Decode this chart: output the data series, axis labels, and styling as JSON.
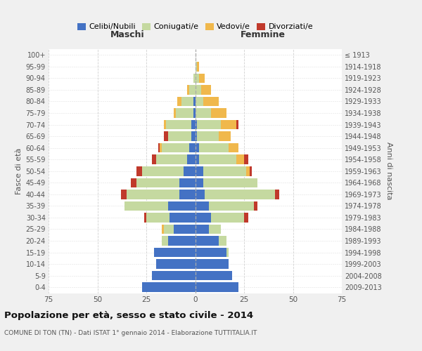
{
  "age_groups": [
    "0-4",
    "5-9",
    "10-14",
    "15-19",
    "20-24",
    "25-29",
    "30-34",
    "35-39",
    "40-44",
    "45-49",
    "50-54",
    "55-59",
    "60-64",
    "65-69",
    "70-74",
    "75-79",
    "80-84",
    "85-89",
    "90-94",
    "95-99",
    "100+"
  ],
  "birth_years": [
    "2009-2013",
    "2004-2008",
    "1999-2003",
    "1994-1998",
    "1989-1993",
    "1984-1988",
    "1979-1983",
    "1974-1978",
    "1969-1973",
    "1964-1968",
    "1959-1963",
    "1954-1958",
    "1949-1953",
    "1944-1948",
    "1939-1943",
    "1934-1938",
    "1929-1933",
    "1924-1928",
    "1919-1923",
    "1914-1918",
    "≤ 1913"
  ],
  "male": {
    "celibi": [
      27,
      22,
      20,
      21,
      14,
      11,
      13,
      14,
      8,
      8,
      6,
      4,
      3,
      2,
      2,
      1,
      1,
      0,
      0,
      0,
      0
    ],
    "coniugati": [
      0,
      0,
      0,
      0,
      3,
      5,
      12,
      22,
      27,
      22,
      21,
      16,
      14,
      12,
      13,
      9,
      6,
      3,
      1,
      0,
      0
    ],
    "vedovi": [
      0,
      0,
      0,
      0,
      0,
      1,
      0,
      0,
      0,
      0,
      0,
      0,
      1,
      0,
      1,
      1,
      2,
      1,
      0,
      0,
      0
    ],
    "divorziati": [
      0,
      0,
      0,
      0,
      0,
      0,
      1,
      0,
      3,
      3,
      3,
      2,
      1,
      2,
      0,
      0,
      0,
      0,
      0,
      0,
      0
    ]
  },
  "female": {
    "nubili": [
      22,
      19,
      17,
      16,
      12,
      7,
      8,
      7,
      5,
      4,
      4,
      2,
      2,
      1,
      1,
      0,
      0,
      0,
      0,
      0,
      0
    ],
    "coniugate": [
      0,
      0,
      0,
      1,
      4,
      6,
      17,
      23,
      36,
      28,
      22,
      19,
      15,
      11,
      12,
      8,
      4,
      3,
      2,
      1,
      0
    ],
    "vedove": [
      0,
      0,
      0,
      0,
      0,
      0,
      0,
      0,
      0,
      0,
      2,
      4,
      5,
      6,
      8,
      8,
      8,
      5,
      3,
      1,
      0
    ],
    "divorziate": [
      0,
      0,
      0,
      0,
      0,
      0,
      2,
      2,
      2,
      0,
      1,
      2,
      0,
      0,
      1,
      0,
      0,
      0,
      0,
      0,
      0
    ]
  },
  "colors": {
    "celibi_nubili": "#4472c4",
    "coniugati": "#c5d9a0",
    "vedovi": "#f0b84c",
    "divorziati": "#c0392b"
  },
  "xlim": 75,
  "title": "Popolazione per età, sesso e stato civile - 2014",
  "subtitle": "COMUNE DI TON (TN) - Dati ISTAT 1° gennaio 2014 - Elaborazione TUTTITALIA.IT",
  "xlabel_left": "Maschi",
  "xlabel_right": "Femmine",
  "ylabel_left": "Fasce di età",
  "ylabel_right": "Anni di nascita",
  "background_color": "#f0f0f0",
  "plot_background": "#ffffff",
  "gridcolor": "#cccccc"
}
